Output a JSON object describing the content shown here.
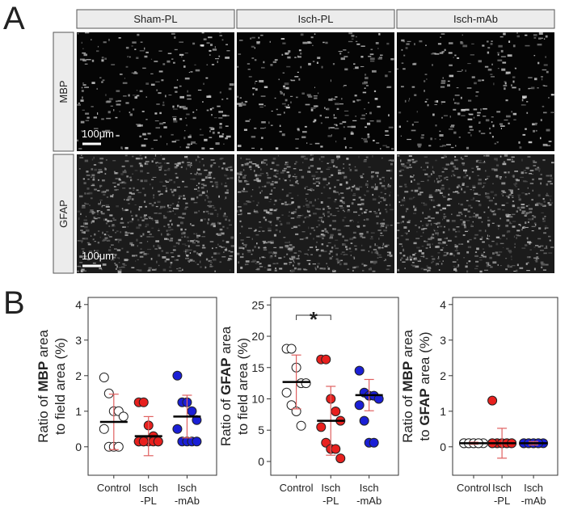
{
  "panel_labels": [
    "A",
    "B"
  ],
  "image_grid": {
    "columns": [
      "Sham-PL",
      "Isch-PL",
      "Isch-mAb"
    ],
    "rows": [
      "MBP",
      "GFAP"
    ],
    "scale_bar": "100μm"
  },
  "chart_data": [
    {
      "type": "strip",
      "y_label_lines": [
        [
          "Ratio of ",
          "MBP",
          " area"
        ],
        [
          "to field area (%)"
        ]
      ],
      "categories": [
        [
          "Control"
        ],
        [
          "Isch",
          "-PL"
        ],
        [
          "Isch",
          "-mAb"
        ]
      ],
      "ylim": [
        -0.8,
        4.2
      ],
      "yticks": [
        0,
        1,
        2,
        3,
        4
      ],
      "groups": [
        {
          "color": "#ffffff",
          "values": [
            1.95,
            1.5,
            1.0,
            1.0,
            0.85,
            0.5,
            0,
            0,
            0
          ],
          "mean": 0.7,
          "sd": 0.78
        },
        {
          "color": "#e8201e",
          "values": [
            1.25,
            1.25,
            0.6,
            0.3,
            0.15,
            0.15,
            0.15,
            0.15,
            0.15,
            0.15,
            0.15,
            0.15
          ],
          "mean": 0.3,
          "sd": 0.55
        },
        {
          "color": "#1a1fd6",
          "values": [
            2.0,
            1.25,
            1.25,
            1.0,
            0.75,
            0.5,
            0.15,
            0.15,
            0.15,
            0.15
          ],
          "mean": 0.85,
          "sd": 0.6
        }
      ]
    },
    {
      "type": "strip",
      "y_label_lines": [
        [
          "Ratio of ",
          "GFAP",
          " area"
        ],
        [
          "to field area (%)"
        ]
      ],
      "categories": [
        [
          "Control"
        ],
        [
          "Isch",
          "-PL"
        ],
        [
          "Isch",
          "-mAb"
        ]
      ],
      "ylim": [
        -2.2,
        26.2
      ],
      "yticks": [
        0,
        5,
        10,
        15,
        20,
        25
      ],
      "annotation": "*",
      "groups": [
        {
          "color": "#ffffff",
          "values": [
            18,
            18,
            15,
            12.5,
            12.5,
            11,
            9,
            8,
            5.7
          ],
          "mean": 12.7,
          "sd": 4.3
        },
        {
          "color": "#e8201e",
          "values": [
            16.3,
            16.3,
            10,
            8,
            6.5,
            5.5,
            3,
            2,
            2,
            0.5
          ],
          "mean": 6.5,
          "sd": 5.5
        },
        {
          "color": "#1a1fd6",
          "values": [
            14.5,
            11,
            10.5,
            10.5,
            10,
            9,
            6.5,
            3,
            3
          ],
          "mean": 10.6,
          "sd": 2.5
        }
      ]
    },
    {
      "type": "strip",
      "y_label_lines": [
        [
          "Ratio of ",
          "MBP",
          " area"
        ],
        [
          "to ",
          "GFAP",
          " area (%)"
        ]
      ],
      "categories": [
        [
          "Control"
        ],
        [
          "Isch",
          "-PL"
        ],
        [
          "Isch",
          "-mAb"
        ]
      ],
      "ylim": [
        -0.8,
        4.2
      ],
      "yticks": [
        0,
        1,
        2,
        3,
        4
      ],
      "groups": [
        {
          "color": "#ffffff",
          "values": [
            0.1,
            0.1,
            0.1,
            0.1,
            0.1,
            0.1,
            0.1,
            0.1,
            0.1
          ],
          "mean": 0.1,
          "sd": 0.03
        },
        {
          "color": "#e8201e",
          "values": [
            1.3,
            0.1,
            0.1,
            0.1,
            0.1,
            0.1,
            0.1,
            0.1,
            0.1,
            0.1,
            0.1
          ],
          "mean": 0.1,
          "sd": 0.42
        },
        {
          "color": "#1a1fd6",
          "values": [
            0.1,
            0.1,
            0.1,
            0.1,
            0.1,
            0.1,
            0.1,
            0.1,
            0.1
          ],
          "mean": 0.1,
          "sd": 0.05
        }
      ]
    }
  ]
}
